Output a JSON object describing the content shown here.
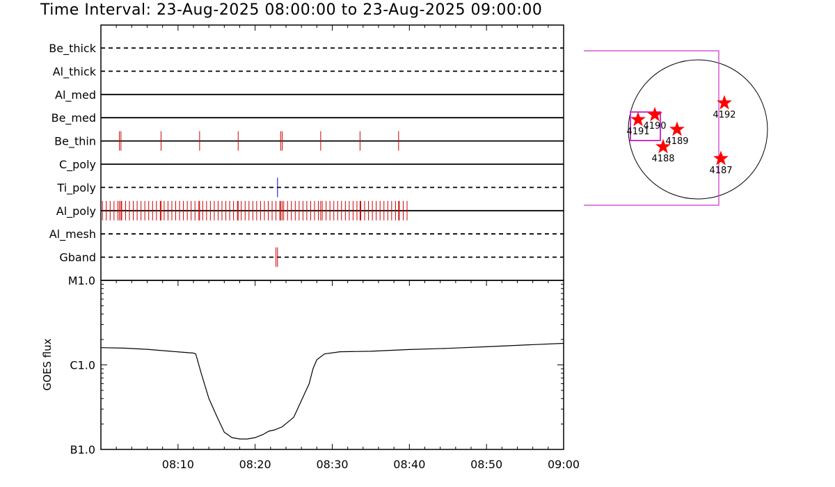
{
  "title": "Time Interval: 23-Aug-2025 08:00:00 to 23-Aug-2025 09:00:00",
  "chart_data": [
    {
      "type": "event-timeline",
      "x_range_minutes": [
        0,
        60
      ],
      "channels": [
        {
          "name": "Be_thick",
          "line": "dashed",
          "events": []
        },
        {
          "name": "Al_thick",
          "line": "dashed",
          "events": []
        },
        {
          "name": "Al_med",
          "line": "solid",
          "events": []
        },
        {
          "name": "Be_med",
          "line": "solid",
          "events": []
        },
        {
          "name": "Be_thin",
          "line": "solid",
          "color": "#cc0000",
          "events": [
            2.4,
            2.6,
            7.8,
            12.8,
            17.8,
            23.3,
            23.5,
            28.5,
            33.6,
            38.6
          ]
        },
        {
          "name": "C_poly",
          "line": "solid",
          "events": []
        },
        {
          "name": "Ti_poly",
          "line": "dashed",
          "color": "#0000cc",
          "events": [
            22.9
          ]
        },
        {
          "name": "Al_poly",
          "line": "solid",
          "color": "#cc0000",
          "event_ranges": [
            [
              0.2,
              39.8
            ]
          ],
          "event_step": 0.5,
          "dense_events": [
            2.4,
            2.6,
            7.8,
            12.8,
            17.8,
            23.3,
            23.5,
            28.5,
            33.6,
            38.6
          ]
        },
        {
          "name": "Al_mesh",
          "line": "dashed",
          "events": []
        },
        {
          "name": "Gband",
          "line": "dashed",
          "color": "#cc0000",
          "events": [
            22.7,
            22.9
          ]
        }
      ]
    },
    {
      "type": "line",
      "ylabel": "GOES flux",
      "yscale": "log",
      "yticks": [
        {
          "label": "M1.0",
          "value": 1e-05
        },
        {
          "label": "C1.0",
          "value": 1e-06
        },
        {
          "label": "B1.0",
          "value": 1e-07
        }
      ],
      "ylim": [
        1e-07,
        1e-05
      ],
      "xticks": [
        {
          "label": "08:10",
          "minute": 10
        },
        {
          "label": "08:20",
          "minute": 20
        },
        {
          "label": "08:30",
          "minute": 30
        },
        {
          "label": "08:40",
          "minute": 40
        },
        {
          "label": "08:50",
          "minute": 50
        },
        {
          "label": "09:00",
          "minute": 60
        }
      ],
      "series": [
        {
          "x": [
            0,
            3,
            6,
            9,
            12,
            12.3,
            13,
            14,
            15,
            16,
            17,
            18,
            19,
            20,
            21,
            21.8,
            22.5,
            23.5,
            25,
            26,
            27,
            27.5,
            28,
            29,
            31,
            35,
            40,
            45,
            50,
            55,
            60
          ],
          "y": [
            1.6e-06,
            1.58e-06,
            1.53e-06,
            1.45e-06,
            1.38e-06,
            1.35e-06,
            8e-07,
            4e-07,
            2.5e-07,
            1.6e-07,
            1.38e-07,
            1.33e-07,
            1.33e-07,
            1.38e-07,
            1.5e-07,
            1.65e-07,
            1.7e-07,
            1.85e-07,
            2.4e-07,
            3.8e-07,
            6e-07,
            9e-07,
            1.15e-06,
            1.35e-06,
            1.43e-06,
            1.45e-06,
            1.52e-06,
            1.57e-06,
            1.64e-06,
            1.72e-06,
            1.8e-06
          ]
        }
      ]
    },
    {
      "type": "scatter",
      "subject": "solar disk",
      "points": [
        {
          "label": "4191",
          "x": -0.86,
          "y": 0.14
        },
        {
          "label": "4190",
          "x": -0.62,
          "y": 0.21
        },
        {
          "label": "4189",
          "x": -0.3,
          "y": 0.0
        },
        {
          "label": "4188",
          "x": -0.5,
          "y": -0.25
        },
        {
          "label": "4192",
          "x": 0.38,
          "y": 0.38
        },
        {
          "label": "4187",
          "x": 0.33,
          "y": -0.42
        }
      ]
    }
  ]
}
